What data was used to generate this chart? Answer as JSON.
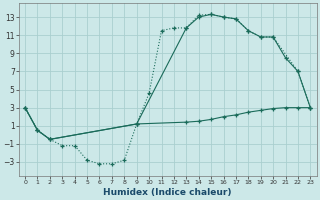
{
  "xlabel": "Humidex (Indice chaleur)",
  "bg_color": "#cce8e8",
  "grid_color": "#aacfcf",
  "line_color": "#1a6b5a",
  "xlim": [
    -0.5,
    23.5
  ],
  "ylim": [
    -4.5,
    14.5
  ],
  "xticks": [
    0,
    1,
    2,
    3,
    4,
    5,
    6,
    7,
    8,
    9,
    10,
    11,
    12,
    13,
    14,
    15,
    16,
    17,
    18,
    19,
    20,
    21,
    22,
    23
  ],
  "yticks": [
    -3,
    -1,
    1,
    3,
    5,
    7,
    9,
    11,
    13
  ],
  "curve1_x": [
    0,
    1,
    2,
    3,
    4,
    5,
    6,
    7,
    8,
    9,
    10,
    11,
    12,
    13,
    14,
    15,
    16,
    17,
    18,
    19,
    20,
    22,
    23
  ],
  "curve1_y": [
    3,
    0.5,
    -0.5,
    -1.2,
    -1.2,
    -2.8,
    -3.2,
    -3.2,
    -2.8,
    1.2,
    4.6,
    11.5,
    11.8,
    11.8,
    13.2,
    13.3,
    13.0,
    12.8,
    11.5,
    10.8,
    10.8,
    7.0,
    3.0
  ],
  "curve2_x": [
    0,
    1,
    2,
    9,
    13,
    14,
    15,
    16,
    17,
    18,
    19,
    20,
    21,
    22,
    23
  ],
  "curve2_y": [
    3,
    0.5,
    -0.5,
    1.2,
    11.8,
    13.0,
    13.3,
    13.0,
    12.8,
    11.5,
    10.8,
    10.8,
    8.5,
    7.0,
    3.0
  ],
  "curve3_x": [
    0,
    1,
    2,
    9,
    13,
    14,
    15,
    16,
    17,
    18,
    19,
    20,
    21,
    22,
    23
  ],
  "curve3_y": [
    3,
    0.5,
    -0.5,
    1.2,
    1.4,
    1.5,
    1.7,
    2.0,
    2.2,
    2.5,
    2.7,
    2.9,
    3.0,
    3.0,
    3.0
  ]
}
